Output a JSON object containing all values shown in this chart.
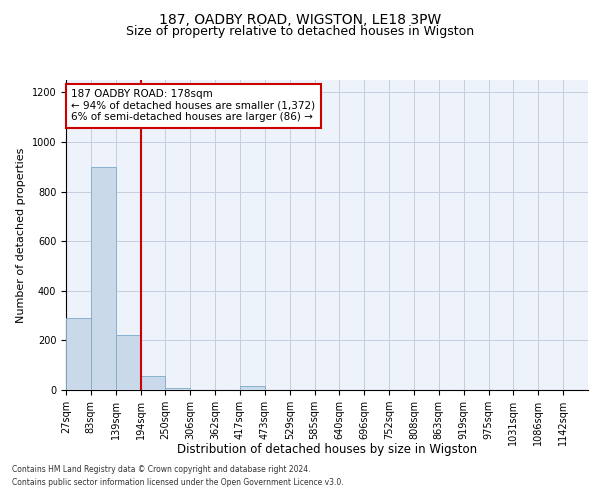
{
  "title1": "187, OADBY ROAD, WIGSTON, LE18 3PW",
  "title2": "Size of property relative to detached houses in Wigston",
  "xlabel": "Distribution of detached houses by size in Wigston",
  "ylabel": "Number of detached properties",
  "footer1": "Contains HM Land Registry data © Crown copyright and database right 2024.",
  "footer2": "Contains public sector information licensed under the Open Government Licence v3.0.",
  "bin_labels": [
    "27sqm",
    "83sqm",
    "139sqm",
    "194sqm",
    "250sqm",
    "306sqm",
    "362sqm",
    "417sqm",
    "473sqm",
    "529sqm",
    "585sqm",
    "640sqm",
    "696sqm",
    "752sqm",
    "808sqm",
    "863sqm",
    "919sqm",
    "975sqm",
    "1031sqm",
    "1086sqm",
    "1142sqm"
  ],
  "bar_values": [
    290,
    900,
    220,
    55,
    10,
    0,
    0,
    15,
    0,
    0,
    0,
    0,
    0,
    0,
    0,
    0,
    0,
    0,
    0,
    0,
    0
  ],
  "bar_color": "#c9d9ea",
  "bar_edgecolor": "#7baaca",
  "vline_x": 3,
  "vline_color": "#cc0000",
  "annotation_text": "187 OADBY ROAD: 178sqm\n← 94% of detached houses are smaller (1,372)\n6% of semi-detached houses are larger (86) →",
  "annotation_box_color": "#cc0000",
  "ylim": [
    0,
    1250
  ],
  "yticks": [
    0,
    200,
    400,
    600,
    800,
    1000,
    1200
  ],
  "grid_color": "#c8cce0",
  "background_color": "#eef2fa",
  "title1_fontsize": 10,
  "title2_fontsize": 9,
  "ylabel_fontsize": 8,
  "xlabel_fontsize": 8.5,
  "tick_fontsize": 7,
  "annot_fontsize": 7.5
}
